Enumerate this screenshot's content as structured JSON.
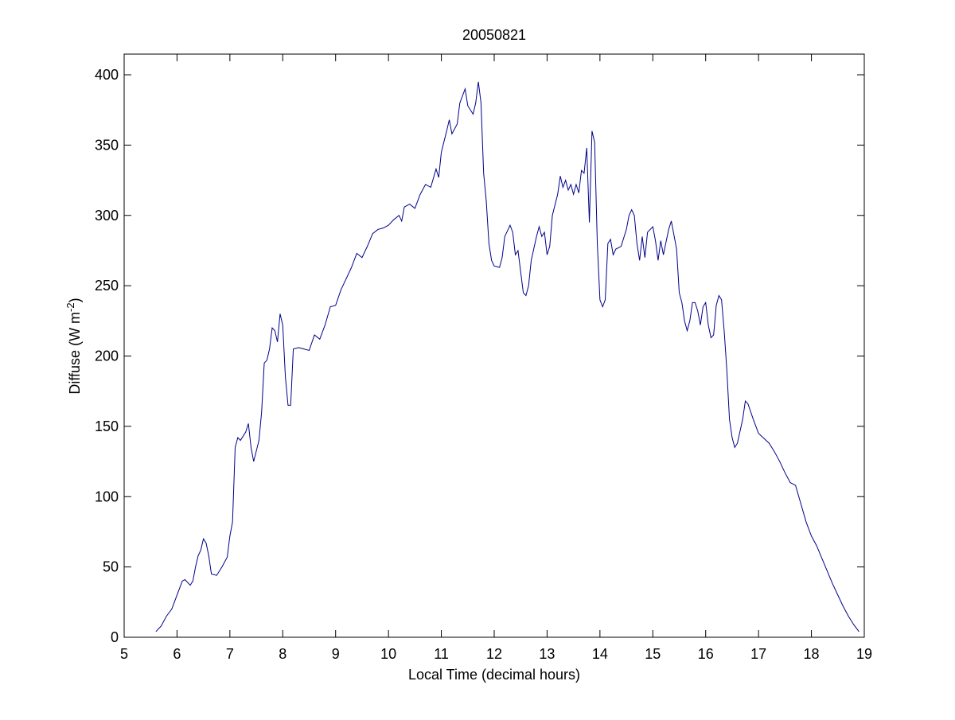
{
  "chart_data": {
    "type": "line",
    "title": "20050821",
    "xlabel": "Local Time (decimal hours)",
    "ylabel": {
      "text": "Diffuse (W m",
      "superscript": "-2",
      "suffix": ")"
    },
    "xlim": [
      5,
      19
    ],
    "xticks": [
      5,
      6,
      7,
      8,
      9,
      10,
      11,
      12,
      13,
      14,
      15,
      16,
      17,
      18,
      19
    ],
    "ylim": [
      0,
      400
    ],
    "yticks": [
      0,
      50,
      100,
      150,
      200,
      250,
      300,
      350,
      400
    ],
    "grid": false,
    "series": [
      {
        "color": "#00008b",
        "x": [
          5.6,
          5.7,
          5.8,
          5.9,
          6.0,
          6.1,
          6.15,
          6.25,
          6.3,
          6.35,
          6.4,
          6.45,
          6.5,
          6.55,
          6.6,
          6.65,
          6.75,
          6.85,
          6.95,
          7.0,
          7.05,
          7.1,
          7.15,
          7.2,
          7.3,
          7.35,
          7.4,
          7.45,
          7.55,
          7.6,
          7.65,
          7.7,
          7.75,
          7.8,
          7.85,
          7.9,
          7.95,
          8.0,
          8.05,
          8.1,
          8.15,
          8.2,
          8.3,
          8.5,
          8.6,
          8.7,
          8.8,
          8.9,
          9.0,
          9.1,
          9.2,
          9.3,
          9.4,
          9.5,
          9.6,
          9.7,
          9.8,
          9.9,
          10.0,
          10.1,
          10.2,
          10.25,
          10.3,
          10.4,
          10.5,
          10.6,
          10.7,
          10.8,
          10.9,
          10.95,
          11.0,
          11.1,
          11.15,
          11.2,
          11.3,
          11.35,
          11.45,
          11.5,
          11.6,
          11.65,
          11.7,
          11.75,
          11.8,
          11.85,
          11.9,
          11.95,
          12.0,
          12.1,
          12.15,
          12.2,
          12.3,
          12.35,
          12.4,
          12.45,
          12.5,
          12.55,
          12.6,
          12.65,
          12.7,
          12.8,
          12.85,
          12.9,
          12.95,
          13.0,
          13.05,
          13.1,
          13.2,
          13.25,
          13.3,
          13.35,
          13.4,
          13.45,
          13.5,
          13.55,
          13.6,
          13.65,
          13.7,
          13.75,
          13.8,
          13.85,
          13.9,
          13.95,
          14.0,
          14.05,
          14.1,
          14.15,
          14.2,
          14.25,
          14.3,
          14.4,
          14.5,
          14.55,
          14.6,
          14.65,
          14.7,
          14.75,
          14.8,
          14.85,
          14.9,
          15.0,
          15.05,
          15.1,
          15.15,
          15.2,
          15.3,
          15.35,
          15.45,
          15.5,
          15.55,
          15.6,
          15.65,
          15.7,
          15.75,
          15.8,
          15.85,
          15.9,
          15.95,
          16.0,
          16.05,
          16.1,
          16.15,
          16.2,
          16.25,
          16.3,
          16.35,
          16.4,
          16.45,
          16.5,
          16.55,
          16.6,
          16.7,
          16.75,
          16.8,
          16.9,
          17.0,
          17.2,
          17.3,
          17.4,
          17.5,
          17.6,
          17.7,
          17.8,
          17.9,
          18.0,
          18.1,
          18.2,
          18.3,
          18.4,
          18.5,
          18.6,
          18.7,
          18.8,
          18.9
        ],
        "values": [
          4,
          8,
          15,
          20,
          30,
          40,
          41,
          37,
          40,
          50,
          58,
          62,
          70,
          67,
          58,
          45,
          44,
          50,
          57,
          72,
          82,
          135,
          142,
          140,
          146,
          152,
          135,
          125,
          140,
          160,
          195,
          197,
          205,
          220,
          218,
          210,
          230,
          222,
          185,
          165,
          165,
          205,
          206,
          204,
          215,
          212,
          222,
          235,
          236,
          247,
          255,
          263,
          273,
          270,
          278,
          287,
          290,
          291,
          293,
          297,
          300,
          296,
          306,
          308,
          305,
          315,
          322,
          320,
          333,
          327,
          345,
          360,
          368,
          358,
          365,
          380,
          390,
          378,
          372,
          380,
          395,
          380,
          330,
          310,
          280,
          268,
          264,
          263,
          270,
          285,
          293,
          288,
          272,
          275,
          260,
          245,
          243,
          250,
          268,
          285,
          292,
          285,
          288,
          272,
          278,
          300,
          315,
          328,
          320,
          325,
          318,
          322,
          315,
          322,
          316,
          332,
          330,
          348,
          295,
          360,
          352,
          280,
          240,
          235,
          240,
          280,
          283,
          272,
          276,
          278,
          290,
          300,
          304,
          300,
          280,
          268,
          285,
          270,
          288,
          292,
          282,
          268,
          282,
          272,
          290,
          296,
          276,
          245,
          238,
          225,
          218,
          225,
          238,
          238,
          232,
          222,
          235,
          238,
          222,
          213,
          215,
          236,
          243,
          240,
          218,
          190,
          155,
          142,
          135,
          138,
          155,
          168,
          166,
          155,
          145,
          138,
          132,
          125,
          117,
          110,
          108,
          95,
          82,
          72,
          65,
          56,
          47,
          38,
          30,
          22,
          15,
          9,
          4
        ]
      }
    ]
  }
}
